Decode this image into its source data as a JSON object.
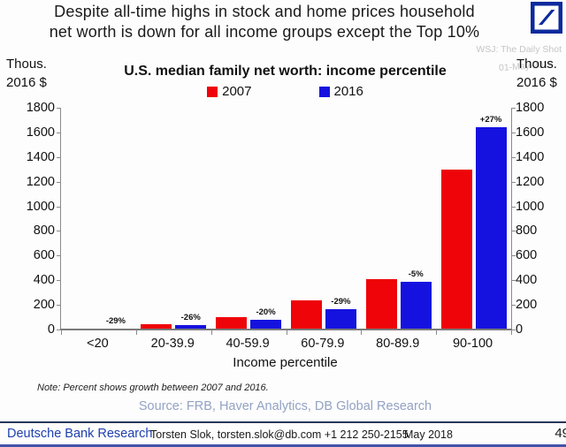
{
  "header": {
    "title_line1": "Despite all-time highs in stock and home prices household",
    "title_line2": "net worth is down for all income groups except the Top 10%",
    "watermark_line1": "WSJ: The Daily Shot",
    "watermark_line2": "01-May-2018",
    "logo": "deutsche-bank-logo"
  },
  "chart_data": {
    "type": "bar",
    "title": "U.S. median family net worth: income percentile",
    "categories": [
      "<20",
      "20-39.9",
      "40-59.9",
      "60-79.9",
      "80-89.9",
      "90-100"
    ],
    "series": [
      {
        "name": "2007",
        "color": "#ee0409",
        "values": [
          10,
          45,
          100,
          235,
          410,
          1295
        ]
      },
      {
        "name": "2016",
        "color": "#1512df",
        "values": [
          7,
          33,
          80,
          167,
          390,
          1645
        ]
      }
    ],
    "bar_labels": [
      "-29%",
      "-26%",
      "-20%",
      "-29%",
      "-5%",
      "+27%"
    ],
    "xlabel": "Income percentile",
    "axis_unit_line1": "Thous.",
    "axis_unit_line2": "2016 $",
    "ylim": [
      0,
      1800
    ],
    "yticks": [
      0,
      200,
      400,
      600,
      800,
      1000,
      1200,
      1400,
      1600,
      1800
    ],
    "legend_position": "top",
    "grid": false
  },
  "note": "Note: Percent shows growth between 2007 and 2016.",
  "source": "Source: FRB, Haver Analytics, DB Global Research",
  "footer": {
    "brand": "Deutsche Bank Research",
    "contact": "Torsten Slok, torsten.slok@db.com +1 212 250-2155",
    "date": "May 2018",
    "page": "49"
  },
  "colors": {
    "bar_2007": "#ee0409",
    "bar_2016": "#1512df",
    "brand_blue": "#1e3fae",
    "logo_blue": "#0c2a9e",
    "source_text": "#93a2c4"
  }
}
